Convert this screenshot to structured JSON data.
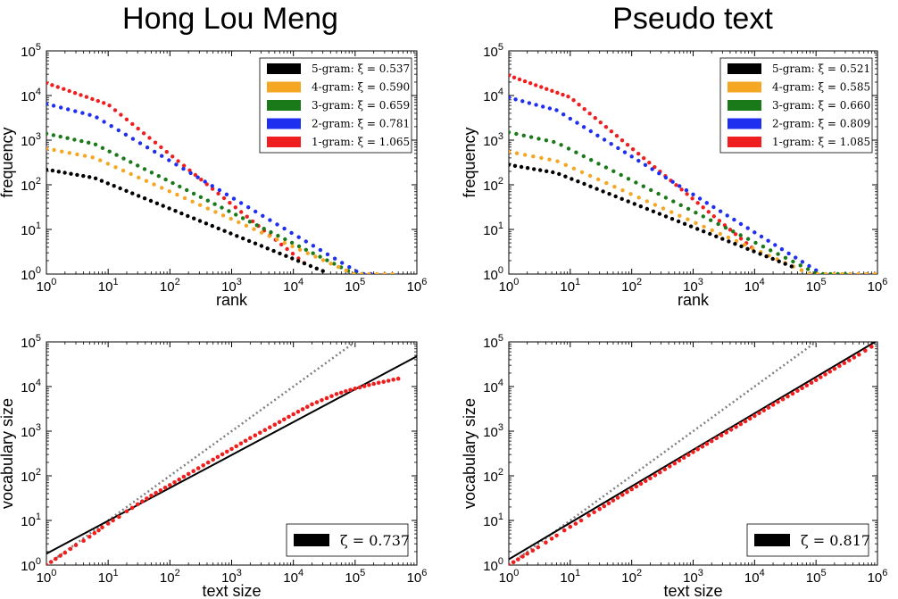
{
  "titles": {
    "left": "Hong Lou Meng",
    "right": "Pseudo text"
  },
  "colors": {
    "5-gram": "#000000",
    "4-gram": "#f5a623",
    "3-gram": "#1a7a1a",
    "2-gram": "#1f2ff0",
    "1-gram": "#f01f1f",
    "fit_line": "#000000",
    "identity_line": "#808080"
  },
  "chart_data": [
    {
      "id": "rank-hlm",
      "type": "scatter",
      "xscale": "log",
      "yscale": "log",
      "xlim": [
        1,
        1000000
      ],
      "ylim": [
        1,
        100000
      ],
      "xlabel": "rank",
      "ylabel": "frequency",
      "xticks": [
        "10^0",
        "10^1",
        "10^2",
        "10^3",
        "10^4",
        "10^5",
        "10^6"
      ],
      "yticks": [
        "10^0",
        "10^1",
        "10^2",
        "10^3",
        "10^4",
        "10^5"
      ],
      "legend": "top-right",
      "series": [
        {
          "name": "5-gram",
          "legend": "5-gram: ξ = 0.537",
          "xi": 0.537,
          "f1": 220,
          "knee": 6,
          "xmax": 30000
        },
        {
          "name": "4-gram",
          "legend": "4-gram: ξ = 0.590",
          "xi": 0.59,
          "f1": 650,
          "knee": 6,
          "xmax": 400000
        },
        {
          "name": "3-gram",
          "legend": "3-gram: ξ = 0.659",
          "xi": 0.659,
          "f1": 1400,
          "knee": 6,
          "xmax": 130000
        },
        {
          "name": "2-gram",
          "legend": "2-gram: ξ = 0.781",
          "xi": 0.781,
          "f1": 6500,
          "knee": 6,
          "xmax": 180000
        },
        {
          "name": "1-gram",
          "legend": "1-gram: ξ = 1.065",
          "xi": 1.065,
          "f1": 19000,
          "knee": 10,
          "xmax": 15000
        }
      ]
    },
    {
      "id": "rank-pseudo",
      "type": "scatter",
      "xscale": "log",
      "yscale": "log",
      "xlim": [
        1,
        1000000
      ],
      "ylim": [
        1,
        100000
      ],
      "xlabel": "rank",
      "ylabel": "frequency",
      "xticks": [
        "10^0",
        "10^1",
        "10^2",
        "10^3",
        "10^4",
        "10^5",
        "10^6"
      ],
      "yticks": [
        "10^0",
        "10^1",
        "10^2",
        "10^3",
        "10^4",
        "10^5"
      ],
      "legend": "top-right",
      "series": [
        {
          "name": "5-gram",
          "legend": "5-gram: ξ = 0.521",
          "xi": 0.521,
          "f1": 280,
          "knee": 6,
          "xmax": 40000
        },
        {
          "name": "4-gram",
          "legend": "4-gram: ξ = 0.585",
          "xi": 0.585,
          "f1": 550,
          "knee": 6,
          "xmax": 900000
        },
        {
          "name": "3-gram",
          "legend": "3-gram: ξ = 0.660",
          "xi": 0.66,
          "f1": 1500,
          "knee": 6,
          "xmax": 300000
        },
        {
          "name": "2-gram",
          "legend": "2-gram: ξ = 0.809",
          "xi": 0.809,
          "f1": 9000,
          "knee": 6,
          "xmax": 100000
        },
        {
          "name": "1-gram",
          "legend": "1-gram: ξ = 1.085",
          "xi": 1.085,
          "f1": 28000,
          "knee": 10,
          "xmax": 9000
        }
      ]
    },
    {
      "id": "heaps-hlm",
      "type": "scatter",
      "xscale": "log",
      "yscale": "log",
      "xlim": [
        1,
        1000000
      ],
      "ylim": [
        1,
        100000
      ],
      "xlabel": "text size",
      "ylabel": "vocabulary size",
      "xticks": [
        "10^0",
        "10^1",
        "10^2",
        "10^3",
        "10^4",
        "10^5",
        "10^6"
      ],
      "yticks": [
        "10^0",
        "10^1",
        "10^2",
        "10^3",
        "10^4",
        "10^5"
      ],
      "legend": "bottom-right",
      "legend_label": "ζ = 0.737",
      "zeta": 0.737,
      "fit_intercept": 1.8,
      "points": {
        "x": [
          1,
          2,
          3,
          4,
          5,
          6,
          7,
          8,
          10,
          12,
          15,
          20,
          30,
          50,
          100,
          200,
          500,
          1000,
          2000,
          5000,
          10000,
          20000,
          50000,
          100000,
          200000,
          500000
        ],
        "y": [
          1,
          1.9,
          2.8,
          3.5,
          4.3,
          5.2,
          6,
          7,
          8.5,
          10,
          12,
          16,
          23,
          36,
          62,
          110,
          230,
          400,
          700,
          1400,
          2400,
          4000,
          6800,
          9000,
          11500,
          15000
        ]
      }
    },
    {
      "id": "heaps-pseudo",
      "type": "scatter",
      "xscale": "log",
      "yscale": "log",
      "xlim": [
        1,
        1000000
      ],
      "ylim": [
        1,
        100000
      ],
      "xlabel": "text size",
      "ylabel": "vocabulary size",
      "xticks": [
        "10^0",
        "10^1",
        "10^2",
        "10^3",
        "10^4",
        "10^5",
        "10^6"
      ],
      "yticks": [
        "10^0",
        "10^1",
        "10^2",
        "10^3",
        "10^4",
        "10^5"
      ],
      "legend": "bottom-right",
      "legend_label": "ζ = 0.817",
      "zeta": 0.817,
      "fit_intercept": 1.35,
      "points": {
        "x": [
          1,
          2,
          3,
          4,
          5,
          6,
          8,
          10,
          15,
          20,
          30,
          50,
          100,
          200,
          500,
          1000,
          2000,
          5000,
          10000,
          20000,
          50000,
          100000,
          200000,
          500000,
          800000
        ],
        "y": [
          1,
          1.8,
          2.5,
          3.2,
          3.9,
          4.6,
          6,
          7.2,
          10,
          13,
          18,
          28,
          50,
          88,
          190,
          340,
          600,
          1250,
          2200,
          3900,
          8000,
          14000,
          25000,
          52000,
          78000
        ]
      }
    }
  ]
}
